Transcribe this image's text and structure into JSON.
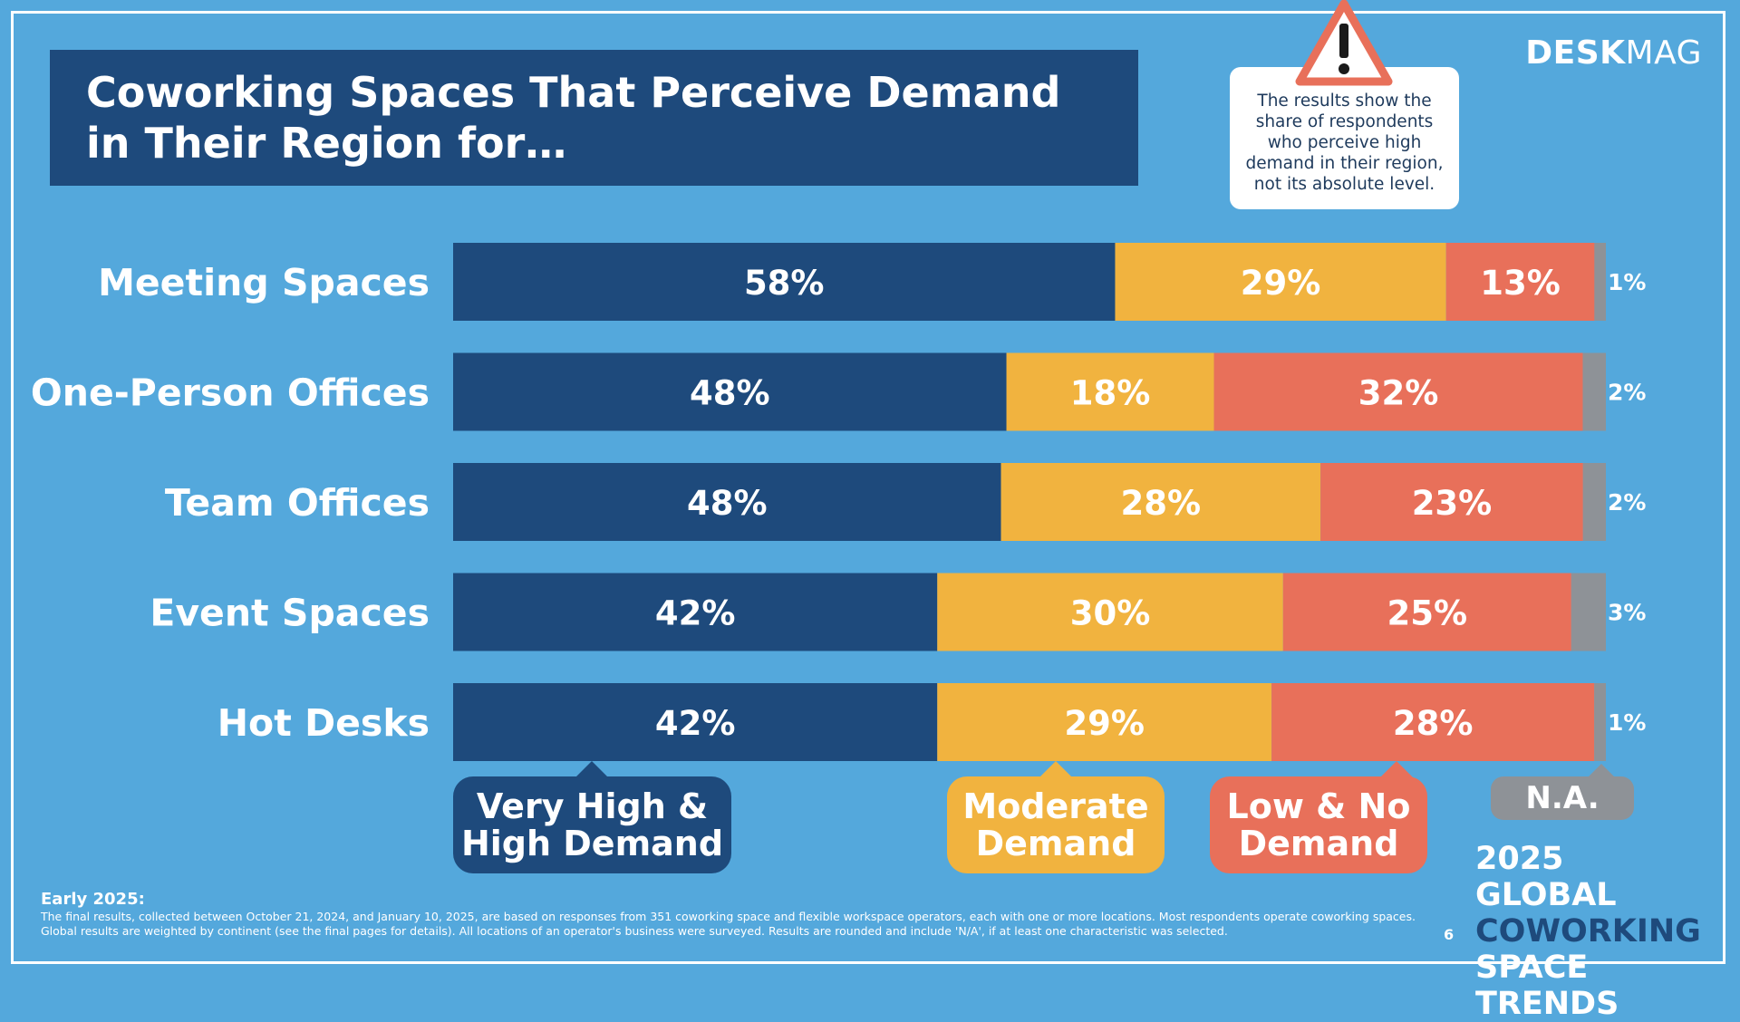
{
  "header": {
    "title": "Coworking Spaces That Perceive Demand in Their Region for…",
    "brand_bold": "DESK",
    "brand_light": "MAG"
  },
  "note": {
    "text": "The results show the share of respondents who perceive high demand in their region, not its absolute level.",
    "icon": "warning-triangle-icon"
  },
  "chart_data": {
    "type": "bar",
    "orientation": "horizontal",
    "stacked": true,
    "value_format": "%",
    "categories": [
      "Meeting Spaces",
      "One-Person Offices",
      "Team Offices",
      "Event Spaces",
      "Hot Desks"
    ],
    "series": [
      {
        "name": "Very High & High Demand",
        "color": "#1e4a7c",
        "values": [
          58,
          48,
          48,
          42,
          42
        ]
      },
      {
        "name": "Moderate Demand",
        "color": "#f1b33f",
        "values": [
          29,
          18,
          28,
          30,
          29
        ]
      },
      {
        "name": "Low & No Demand",
        "color": "#e8705a",
        "values": [
          13,
          32,
          23,
          25,
          28
        ]
      },
      {
        "name": "N.A.",
        "color": "#8e9297",
        "values": [
          1,
          2,
          2,
          3,
          1
        ]
      }
    ]
  },
  "legend": {
    "high_line1": "Very High &",
    "high_line2": "High Demand",
    "moderate_line1": "Moderate",
    "moderate_line2": "Demand",
    "low_line1": "Low & No",
    "low_line2": "Demand",
    "na": "N.A."
  },
  "footer": {
    "heading": "Early 2025:",
    "text": "The final results, collected between October 21, 2024, and January 10, 2025, are based on responses from 351 coworking space and flexible workspace operators, each with one or more locations. Most respondents operate coworking spaces. Global results are weighted by continent (see the final pages for details). All locations of an operator's business were surveyed. Results are rounded and include 'N/A', if at least one characteristic was selected.",
    "page_number": "6"
  },
  "report": {
    "line1": "2025 GLOBAL",
    "line2": "COWORKING",
    "line3": "SPACE TRENDS"
  }
}
